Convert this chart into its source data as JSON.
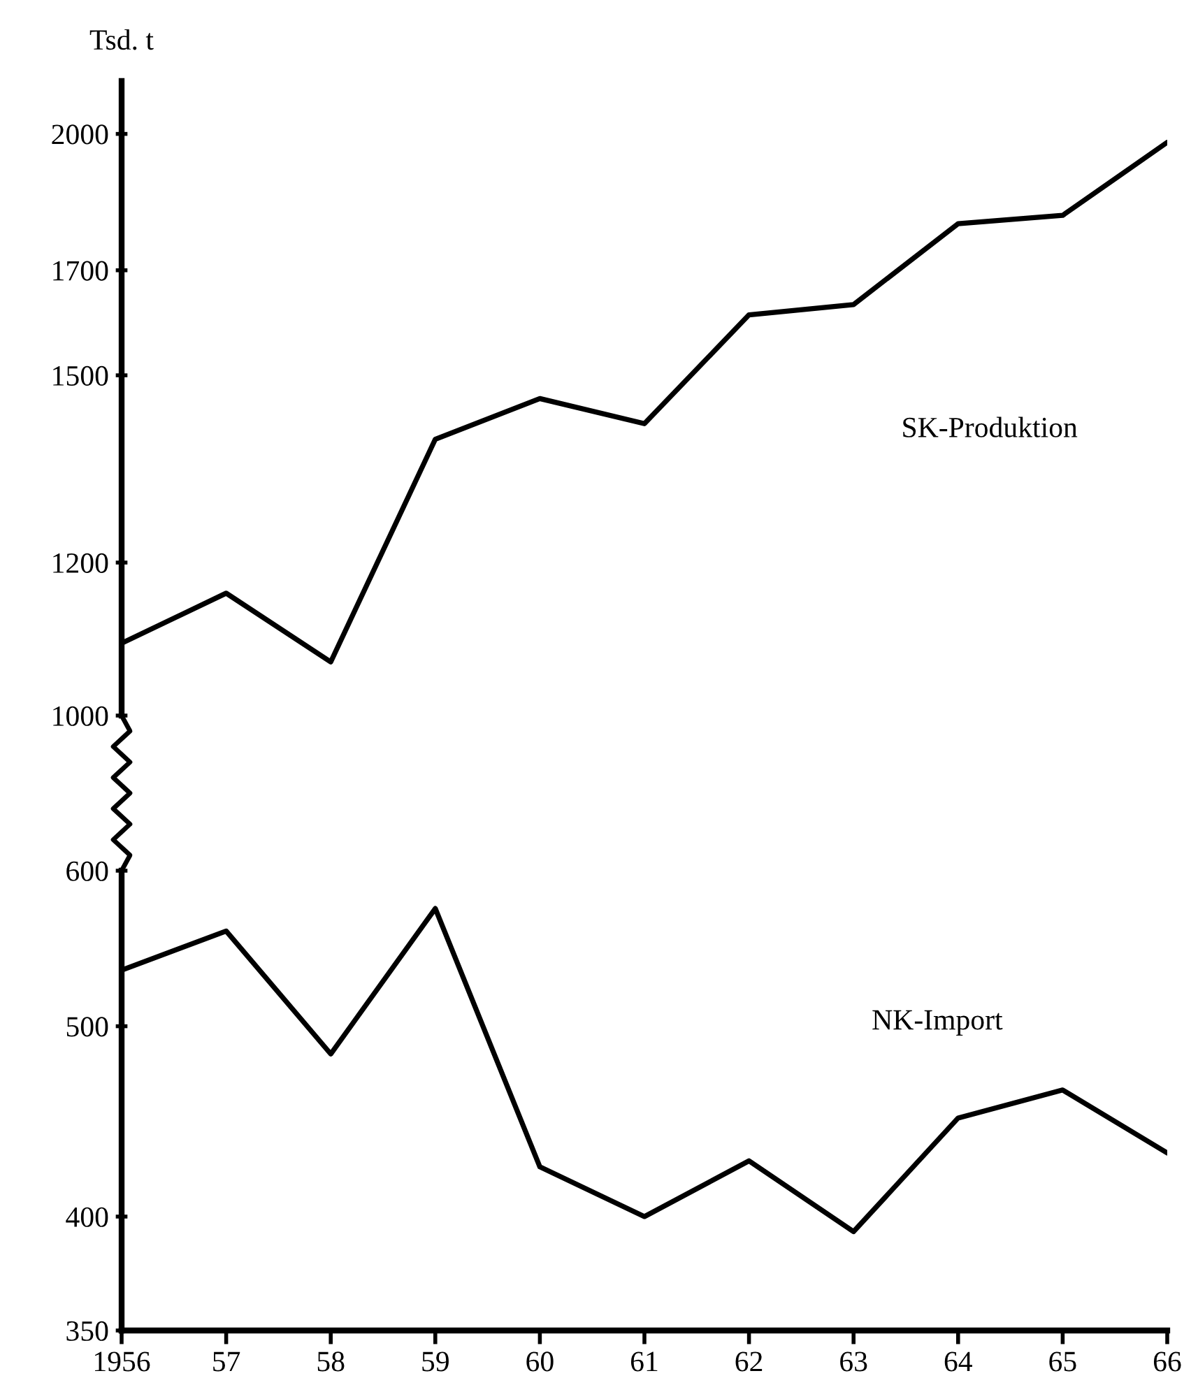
{
  "chart_data": [
    {
      "type": "line",
      "ylabel": "Tsd. t",
      "log": true,
      "tick_labels": "y",
      "categories": [
        "1956",
        "57",
        "58",
        "59",
        "60",
        "61",
        "62",
        "63",
        "64",
        "65",
        "66"
      ],
      "ylim": [
        1000,
        2130
      ],
      "yticks": [
        1000,
        1200,
        1500,
        1700,
        2000
      ],
      "series": [
        {
          "name": "SK-Produktion",
          "color": "#000000",
          "values": [
            1090,
            1157,
            1066,
            1390,
            1459,
            1416,
            1612,
            1632,
            1797,
            1815,
            1980
          ]
        }
      ]
    },
    {
      "type": "line",
      "log": true,
      "categories": [
        "1956",
        "57",
        "58",
        "59",
        "60",
        "61",
        "62",
        "63",
        "64",
        "65",
        "66"
      ],
      "ylim": [
        350,
        600
      ],
      "yticks": [
        350,
        400,
        500,
        600
      ],
      "series": [
        {
          "name": "NK-Import",
          "color": "#000000",
          "values": [
            534,
            559,
            484,
            574,
            424,
            400,
            427,
            393,
            449,
            464,
            431
          ]
        }
      ]
    }
  ]
}
